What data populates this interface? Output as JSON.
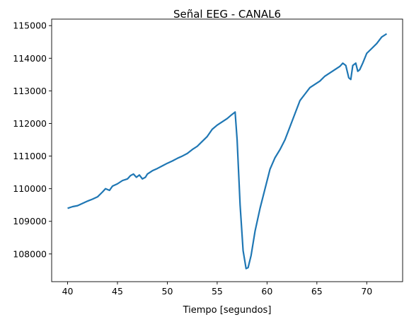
{
  "chart_data": {
    "type": "line",
    "title": "Señal EEG - CANAL6",
    "xlabel": "Tiempo [segundos]",
    "ylabel": "",
    "xlim": [
      38.4,
      73.6
    ],
    "ylim": [
      107150,
      115200
    ],
    "xticks": [
      40,
      45,
      50,
      55,
      60,
      65,
      70
    ],
    "yticks": [
      108000,
      109000,
      110000,
      111000,
      112000,
      113000,
      114000,
      115000
    ],
    "grid": false,
    "legend": "none",
    "series": [
      {
        "color": "#1f77b4",
        "points": [
          [
            40.0,
            109400
          ],
          [
            40.5,
            109450
          ],
          [
            41.0,
            109480
          ],
          [
            41.5,
            109550
          ],
          [
            42.0,
            109620
          ],
          [
            42.5,
            109680
          ],
          [
            43.0,
            109750
          ],
          [
            43.5,
            109900
          ],
          [
            43.8,
            110000
          ],
          [
            44.2,
            109950
          ],
          [
            44.5,
            110080
          ],
          [
            45.0,
            110150
          ],
          [
            45.5,
            110250
          ],
          [
            46.0,
            110300
          ],
          [
            46.3,
            110400
          ],
          [
            46.6,
            110450
          ],
          [
            46.9,
            110350
          ],
          [
            47.2,
            110420
          ],
          [
            47.5,
            110300
          ],
          [
            47.8,
            110350
          ],
          [
            48.0,
            110450
          ],
          [
            48.5,
            110550
          ],
          [
            49.0,
            110620
          ],
          [
            49.5,
            110700
          ],
          [
            50.0,
            110780
          ],
          [
            50.5,
            110850
          ],
          [
            51.0,
            110930
          ],
          [
            51.5,
            111000
          ],
          [
            52.0,
            111080
          ],
          [
            52.5,
            111200
          ],
          [
            53.0,
            111300
          ],
          [
            53.5,
            111450
          ],
          [
            54.0,
            111600
          ],
          [
            54.5,
            111820
          ],
          [
            55.0,
            111950
          ],
          [
            55.5,
            112050
          ],
          [
            56.0,
            112150
          ],
          [
            56.5,
            112280
          ],
          [
            56.8,
            112350
          ],
          [
            57.0,
            111500
          ],
          [
            57.3,
            109500
          ],
          [
            57.6,
            108100
          ],
          [
            57.9,
            107550
          ],
          [
            58.1,
            107580
          ],
          [
            58.4,
            107950
          ],
          [
            58.8,
            108700
          ],
          [
            59.3,
            109400
          ],
          [
            59.8,
            110000
          ],
          [
            60.3,
            110600
          ],
          [
            60.8,
            110950
          ],
          [
            61.3,
            111200
          ],
          [
            61.8,
            111500
          ],
          [
            62.3,
            111900
          ],
          [
            62.8,
            112300
          ],
          [
            63.3,
            112700
          ],
          [
            63.8,
            112900
          ],
          [
            64.3,
            113100
          ],
          [
            64.8,
            113200
          ],
          [
            65.3,
            113300
          ],
          [
            65.8,
            113450
          ],
          [
            66.3,
            113550
          ],
          [
            66.8,
            113650
          ],
          [
            67.3,
            113750
          ],
          [
            67.6,
            113850
          ],
          [
            67.9,
            113780
          ],
          [
            68.2,
            113400
          ],
          [
            68.4,
            113350
          ],
          [
            68.6,
            113780
          ],
          [
            68.9,
            113850
          ],
          [
            69.1,
            113600
          ],
          [
            69.3,
            113650
          ],
          [
            69.6,
            113850
          ],
          [
            70.0,
            114150
          ],
          [
            70.5,
            114300
          ],
          [
            71.0,
            114450
          ],
          [
            71.5,
            114650
          ],
          [
            72.0,
            114750
          ]
        ]
      }
    ]
  }
}
